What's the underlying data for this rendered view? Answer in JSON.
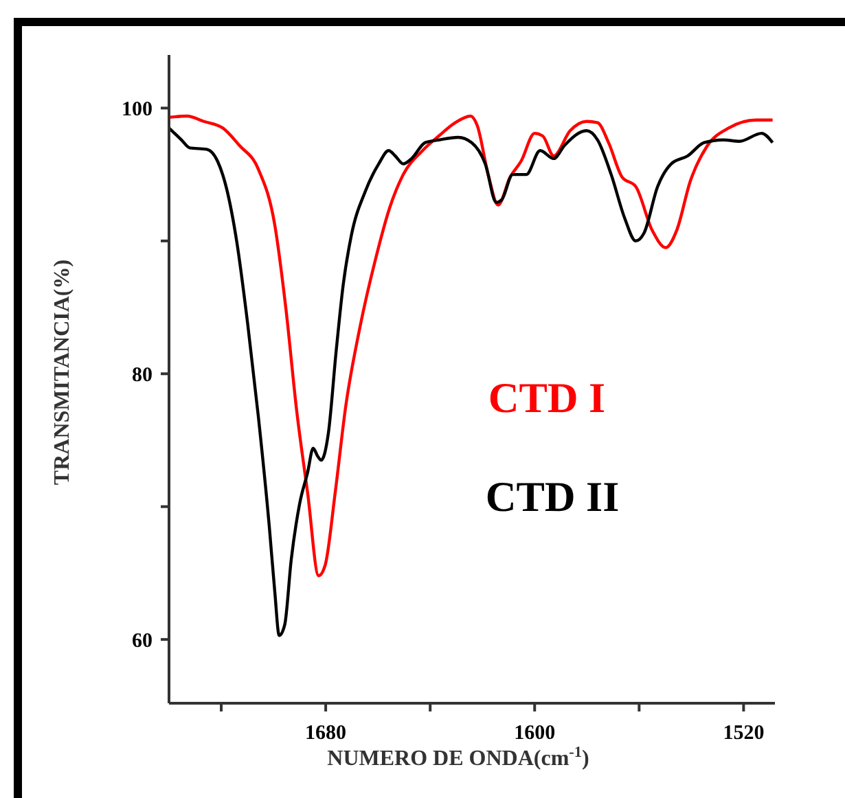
{
  "chart_data": {
    "type": "line",
    "xlabel": "NUMERO DE ONDA(cm$^{-1}$)",
    "ylabel": "TRANSMITANCIA(%)",
    "xlim": [
      1740,
      1508
    ],
    "ylim": [
      55.2,
      104
    ],
    "xticks": [
      {
        "value": 1720,
        "label": null
      },
      1680,
      {
        "value": 1640,
        "label": null
      },
      1600,
      {
        "value": 1560,
        "label": null
      },
      1520
    ],
    "yticks": [
      60,
      {
        "value": 70,
        "label": null
      },
      80,
      {
        "value": 90,
        "label": null
      },
      100
    ],
    "grid": false,
    "marker": "none",
    "line_style": "solid",
    "series": [
      {
        "name": "CTD I",
        "color": "#ff0000",
        "x": [
          1740,
          1733.1,
          1726.7,
          1719.4,
          1713.1,
          1705.8,
          1699.5,
          1695.3,
          1691.1,
          1686.9,
          1682.7,
          1680.2,
          1676.4,
          1672.3,
          1667,
          1660.7,
          1655.5,
          1650.3,
          1642.9,
          1636.7,
          1630.4,
          1624.5,
          1622,
          1617.8,
          1614,
          1609.4,
          1605.2,
          1600,
          1596.9,
          1592.7,
          1586.4,
          1580.1,
          1575.9,
          1571.7,
          1566.5,
          1561.3,
          1555,
          1549.8,
          1545.6,
          1540.4,
          1534.1,
          1525.7,
          1515.2,
          1508.9
        ],
        "values": [
          99.3,
          99.4,
          99.0,
          98.5,
          97.2,
          95.4,
          91.2,
          85.0,
          77.2,
          71.0,
          64.8,
          65.6,
          71.0,
          77.6,
          83.4,
          88.8,
          92.5,
          95.0,
          96.8,
          97.9,
          98.9,
          99.4,
          98.7,
          95.0,
          92.7,
          94.8,
          96.0,
          98.1,
          97.9,
          96.4,
          98.3,
          99.0,
          98.9,
          97.4,
          94.8,
          94.1,
          90.8,
          89.5,
          90.8,
          94.5,
          97.1,
          98.5,
          99.1,
          99.1
        ]
      },
      {
        "name": "CTD II",
        "color": "#000000",
        "x": [
          1740,
          1735.2,
          1732,
          1725.6,
          1721.4,
          1717.9,
          1714.1,
          1709.9,
          1705.8,
          1701.6,
          1699.5,
          1697.8,
          1695.7,
          1693.2,
          1690,
          1686.9,
          1684.8,
          1683.1,
          1681.7,
          1679,
          1676,
          1673.3,
          1670.2,
          1664.9,
          1659.7,
          1655.9,
          1653.4,
          1650.3,
          1647.1,
          1641.9,
          1636.7,
          1629.3,
          1624.1,
          1618.9,
          1614.7,
          1612.6,
          1608.4,
          1603.2,
          1597.9,
          1592.7,
          1588.5,
          1580.1,
          1575.9,
          1570.7,
          1565.5,
          1561.3,
          1558.1,
          1552.9,
          1547.7,
          1541.4,
          1535.1,
          1527.8,
          1521.5,
          1513.1,
          1508.9
        ],
        "values": [
          98.5,
          97.6,
          97.0,
          96.9,
          96.0,
          93.9,
          90.0,
          83.8,
          76.8,
          68.5,
          63.6,
          60.3,
          61.1,
          66.0,
          70.2,
          72.6,
          74.4,
          73.8,
          73.5,
          75.5,
          81.7,
          86.7,
          90.4,
          93.7,
          95.8,
          96.8,
          96.4,
          95.8,
          96.2,
          97.4,
          97.6,
          97.8,
          97.4,
          95.8,
          92.9,
          93.1,
          95.0,
          95.0,
          96.8,
          96.2,
          97.2,
          98.3,
          97.6,
          95.0,
          91.7,
          90.0,
          90.6,
          94.1,
          95.8,
          96.4,
          97.4,
          97.6,
          97.5,
          98.1,
          97.4
        ]
      }
    ]
  }
}
